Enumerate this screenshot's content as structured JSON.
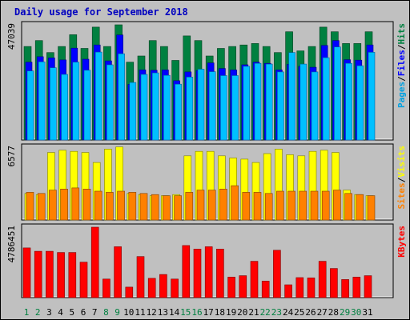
{
  "chart_data": {
    "type": "bar",
    "title": "Daily usage for September 2018",
    "x": [
      "1",
      "2",
      "3",
      "4",
      "5",
      "6",
      "7",
      "8",
      "9",
      "10",
      "11",
      "12",
      "13",
      "14",
      "15",
      "16",
      "17",
      "18",
      "19",
      "20",
      "21",
      "22",
      "23",
      "24",
      "25",
      "26",
      "27",
      "28",
      "29",
      "30",
      "31"
    ],
    "weekend_days": [
      "1",
      "2",
      "8",
      "9",
      "15",
      "16",
      "22",
      "23",
      "29",
      "30"
    ],
    "panels": [
      {
        "id": "hits",
        "ylabel_parts": [
          "Pages",
          "/",
          "Files",
          "/",
          "Hits"
        ],
        "ylabel_colors": [
          "#00a0e0",
          "#000000",
          "#0000ff",
          "#000000",
          "#008040"
        ],
        "max_label": "47039",
        "ymax": 47039,
        "series": [
          {
            "name": "Hits",
            "color": "#008040",
            "values": [
              38200,
              40600,
              35700,
              38200,
              43000,
              37400,
              46100,
              38200,
              47039,
              31800,
              34300,
              40600,
              38200,
              32500,
              42500,
              40600,
              34300,
              37400,
              38200,
              38800,
              39400,
              38200,
              35700,
              44200,
              36400,
              38200,
              46100,
              44200,
              39400,
              39400,
              44200
            ]
          },
          {
            "name": "Files",
            "color": "#0000ff",
            "values": [
              31800,
              34000,
              33500,
              32700,
              37500,
              33000,
              38800,
              32300,
              42900,
              22700,
              28600,
              28500,
              28600,
              24200,
              27800,
              28400,
              31500,
              29200,
              28600,
              30700,
              31800,
              31300,
              28600,
              30900,
              30100,
              29700,
              38600,
              40600,
              32800,
              32600,
              38800
            ]
          },
          {
            "name": "Pages",
            "color": "#00c0ff",
            "values": [
              28200,
              31900,
              29500,
              26800,
              31800,
              28500,
              35900,
              30700,
              35200,
              23500,
              26800,
              27400,
              26400,
              22800,
              25700,
              28900,
              27900,
              26300,
              26300,
              30100,
              31300,
              31000,
              27800,
              35700,
              31000,
              27800,
              33600,
              38000,
              31300,
              30300,
              35800
            ]
          }
        ]
      },
      {
        "id": "visits",
        "ylabel_parts": [
          "Sites",
          "/",
          "Visits"
        ],
        "ylabel_colors": [
          "#ff8000",
          "#000000",
          "#ffff00"
        ],
        "max_label": "6577",
        "ymax": 6577,
        "series": [
          {
            "name": "Visits",
            "color": "#ffff00",
            "values": [
              2400,
              2300,
              6100,
              6300,
              6200,
              6100,
              5200,
              6400,
              6600,
              2400,
              2300,
              2200,
              2200,
              2300,
              5800,
              6200,
              6200,
              5800,
              5600,
              5500,
              5200,
              6000,
              6400,
              5900,
              5800,
              6200,
              6300,
              6100,
              2700,
              2300,
              2200
            ]
          },
          {
            "name": "Sites",
            "color": "#ff8000",
            "values": [
              2500,
              2400,
              2700,
              2800,
              2900,
              2800,
              2600,
              2500,
              2600,
              2500,
              2400,
              2300,
              2200,
              2200,
              2500,
              2700,
              2700,
              2800,
              3100,
              2500,
              2500,
              2400,
              2600,
              2600,
              2600,
              2600,
              2600,
              2700,
              2400,
              2300,
              2200
            ]
          }
        ]
      },
      {
        "id": "kbytes",
        "ylabel_parts": [
          "KBytes"
        ],
        "ylabel_colors": [
          "#ff0000"
        ],
        "max_label": "4786451",
        "ymax": 4786451,
        "series": [
          {
            "name": "KBytes",
            "color": "#ff0000",
            "values": [
              3380000,
              3150000,
              3150000,
              3070000,
              3070000,
              2410000,
              4786451,
              1260000,
              3460000,
              710000,
              2790000,
              1310000,
              1570000,
              1260000,
              3540000,
              3300000,
              3460000,
              3300000,
              1390000,
              1490000,
              2470000,
              1120000,
              3220000,
              870000,
              1360000,
              1340000,
              2470000,
              1980000,
              1230000,
              1390000,
              1490000
            ]
          }
        ]
      }
    ],
    "colors": {
      "background": "#c0c0c0",
      "title": "#0000c0",
      "day_weekend": "#008040",
      "day_weekday": "#000000"
    }
  }
}
